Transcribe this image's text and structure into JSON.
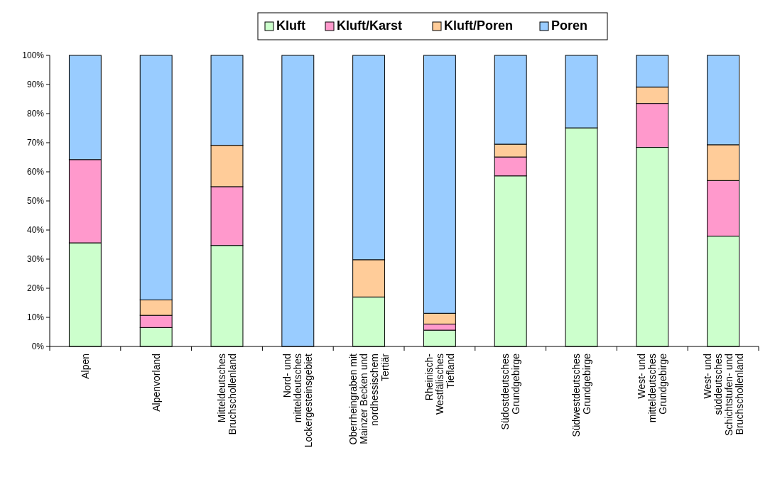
{
  "chart_data": {
    "type": "bar",
    "stacked": true,
    "legend": "top",
    "grid": false,
    "categories": [
      "Alpen",
      "Alpenvorland",
      "Mitteldeutsches Bruchschollenland",
      "Nord- und mitteldeutsches Lockergesteinsgebiet",
      "Oberrheingraben mit Mainzer Becken und nordhessischem Tertiär",
      "Rheinisch-Westfälisches Tiefland",
      "Südostdeutsches Grundgebirge",
      "Südwestdeutsches Grundgebirge",
      "West- und mitteldeutsches Grundgebirge",
      "West- und süddeutsches Schichtstufen- und Bruchschollenland"
    ],
    "series": [
      {
        "name": "Kluft",
        "color": "#ccffcc",
        "values": [
          35.6,
          6.5,
          34.7,
          0,
          17.0,
          5.6,
          58.6,
          75.1,
          68.4,
          37.9
        ]
      },
      {
        "name": "Kluft/Karst",
        "color": "#ff99cc",
        "values": [
          28.6,
          4.2,
          20.2,
          0,
          0,
          2.1,
          6.5,
          0,
          15.1,
          19.1
        ]
      },
      {
        "name": "Kluft/Poren",
        "color": "#ffcc99",
        "values": [
          0,
          5.3,
          14.2,
          0,
          12.8,
          3.7,
          4.4,
          0,
          5.6,
          12.3
        ]
      },
      {
        "name": "Poren",
        "color": "#99ccff",
        "values": [
          35.8,
          84.0,
          30.9,
          100,
          70.2,
          88.6,
          30.5,
          24.9,
          10.9,
          30.7
        ]
      }
    ],
    "ylim": [
      0,
      100
    ],
    "yticks": [
      {
        "value": 0,
        "label": "0%"
      },
      {
        "value": 10,
        "label": "10%"
      },
      {
        "value": 20,
        "label": "20%"
      },
      {
        "value": 30,
        "label": "30%"
      },
      {
        "value": 40,
        "label": "40%"
      },
      {
        "value": 50,
        "label": "50%"
      },
      {
        "value": 60,
        "label": "60%"
      },
      {
        "value": 70,
        "label": "70%"
      },
      {
        "value": 80,
        "label": "80%"
      },
      {
        "value": 90,
        "label": "90%"
      },
      {
        "value": 100,
        "label": "100%"
      }
    ]
  }
}
